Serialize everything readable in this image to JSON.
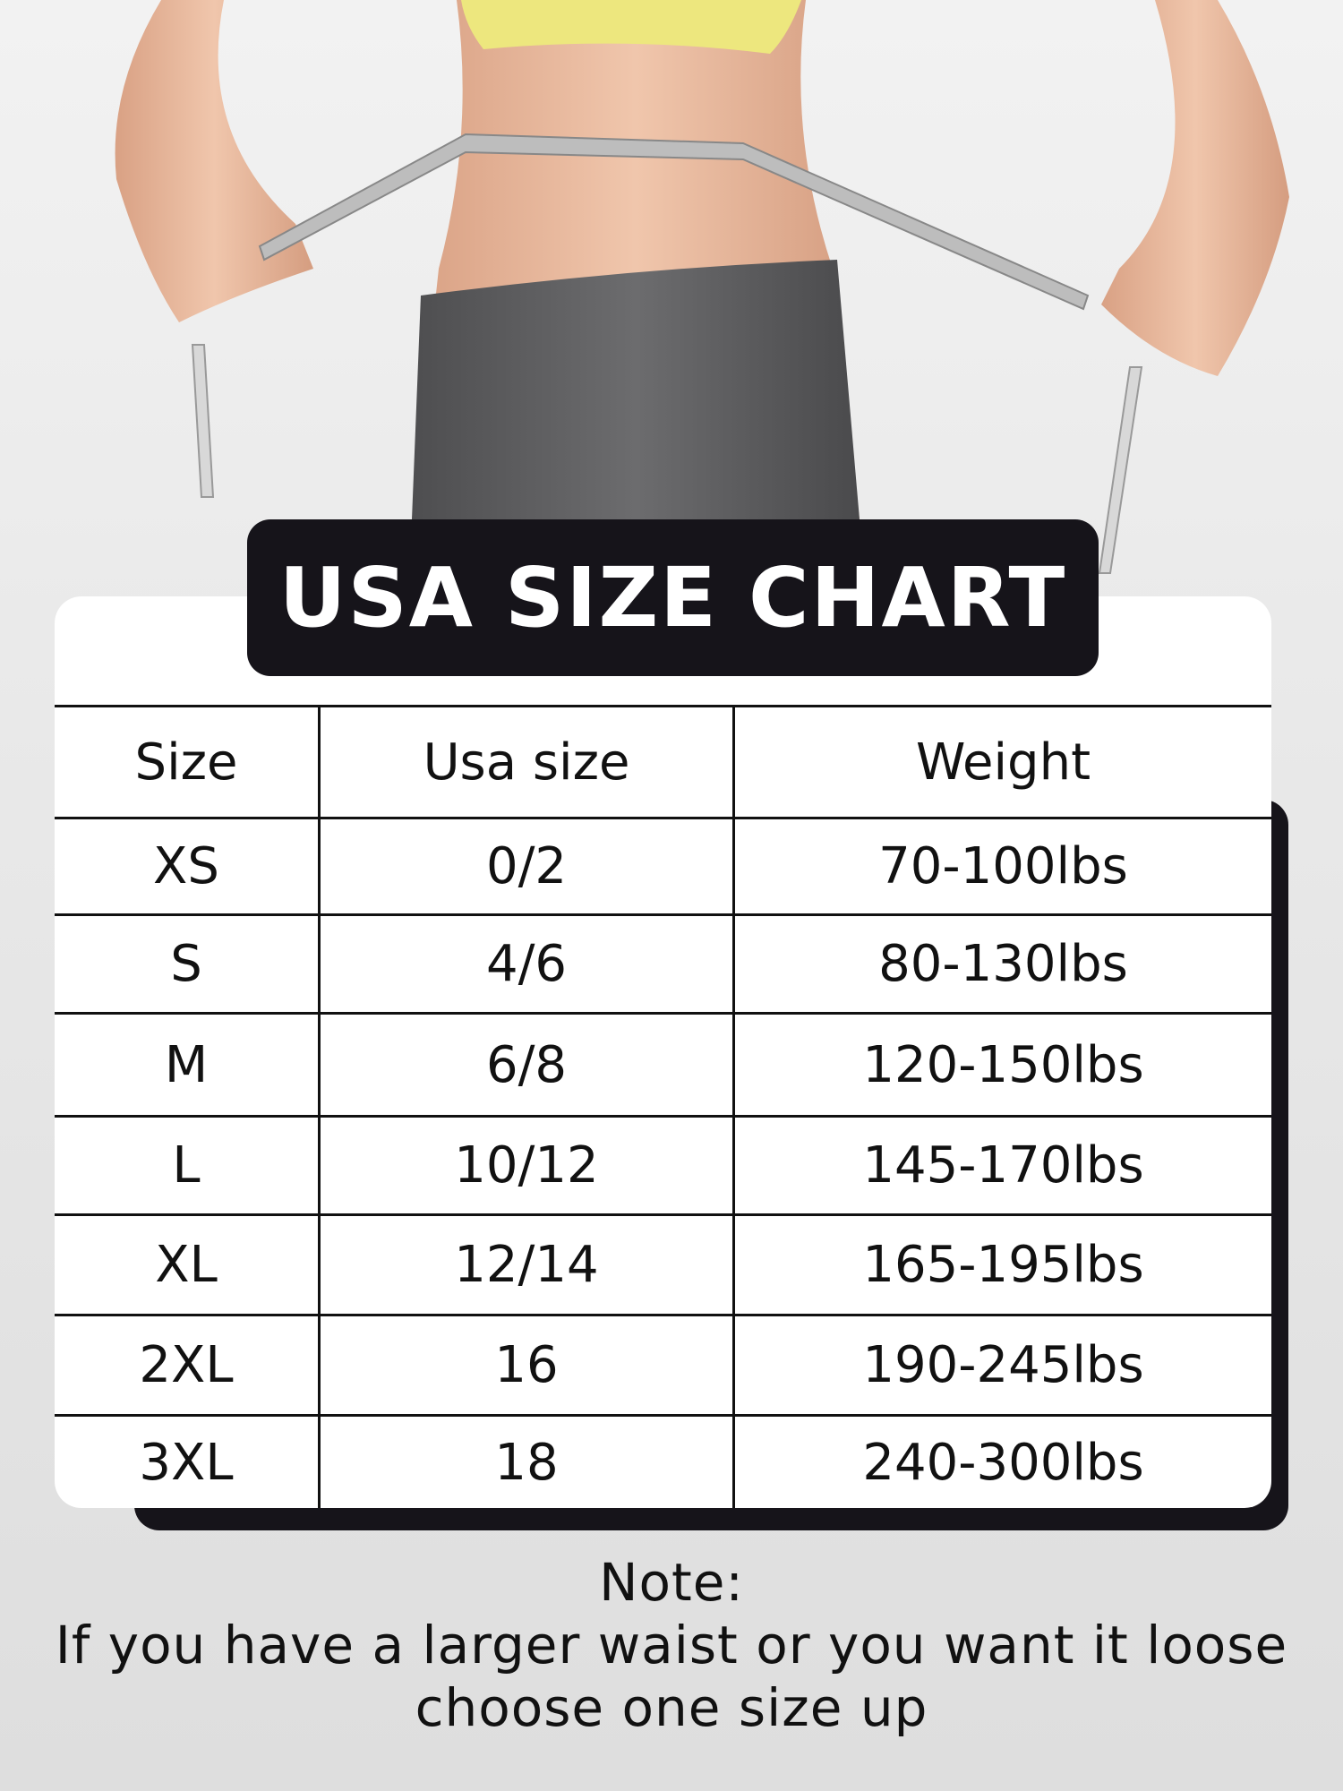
{
  "title": "USA SIZE CHART",
  "table": {
    "headers": [
      "Size",
      "Usa size",
      "Weight"
    ],
    "rows": [
      [
        "XS",
        "0/2",
        "70-100lbs"
      ],
      [
        "S",
        "4/6",
        "80-130lbs"
      ],
      [
        "M",
        "6/8",
        "120-150lbs"
      ],
      [
        "L",
        "10/12",
        "145-170lbs"
      ],
      [
        "XL",
        "12/14",
        "165-195lbs"
      ],
      [
        "2XL",
        "16",
        "190-245lbs"
      ],
      [
        "3XL",
        "18",
        "240-300lbs"
      ]
    ]
  },
  "note": {
    "heading": "Note:",
    "line1": "If you have a larger waist or you want it loose",
    "line2": "choose one size up"
  },
  "colors": {
    "dark": "#16141a",
    "background": "#e9e9e9",
    "shorts": "#5e5e60",
    "top": "#ede77e",
    "skin": "#e9b99c"
  }
}
